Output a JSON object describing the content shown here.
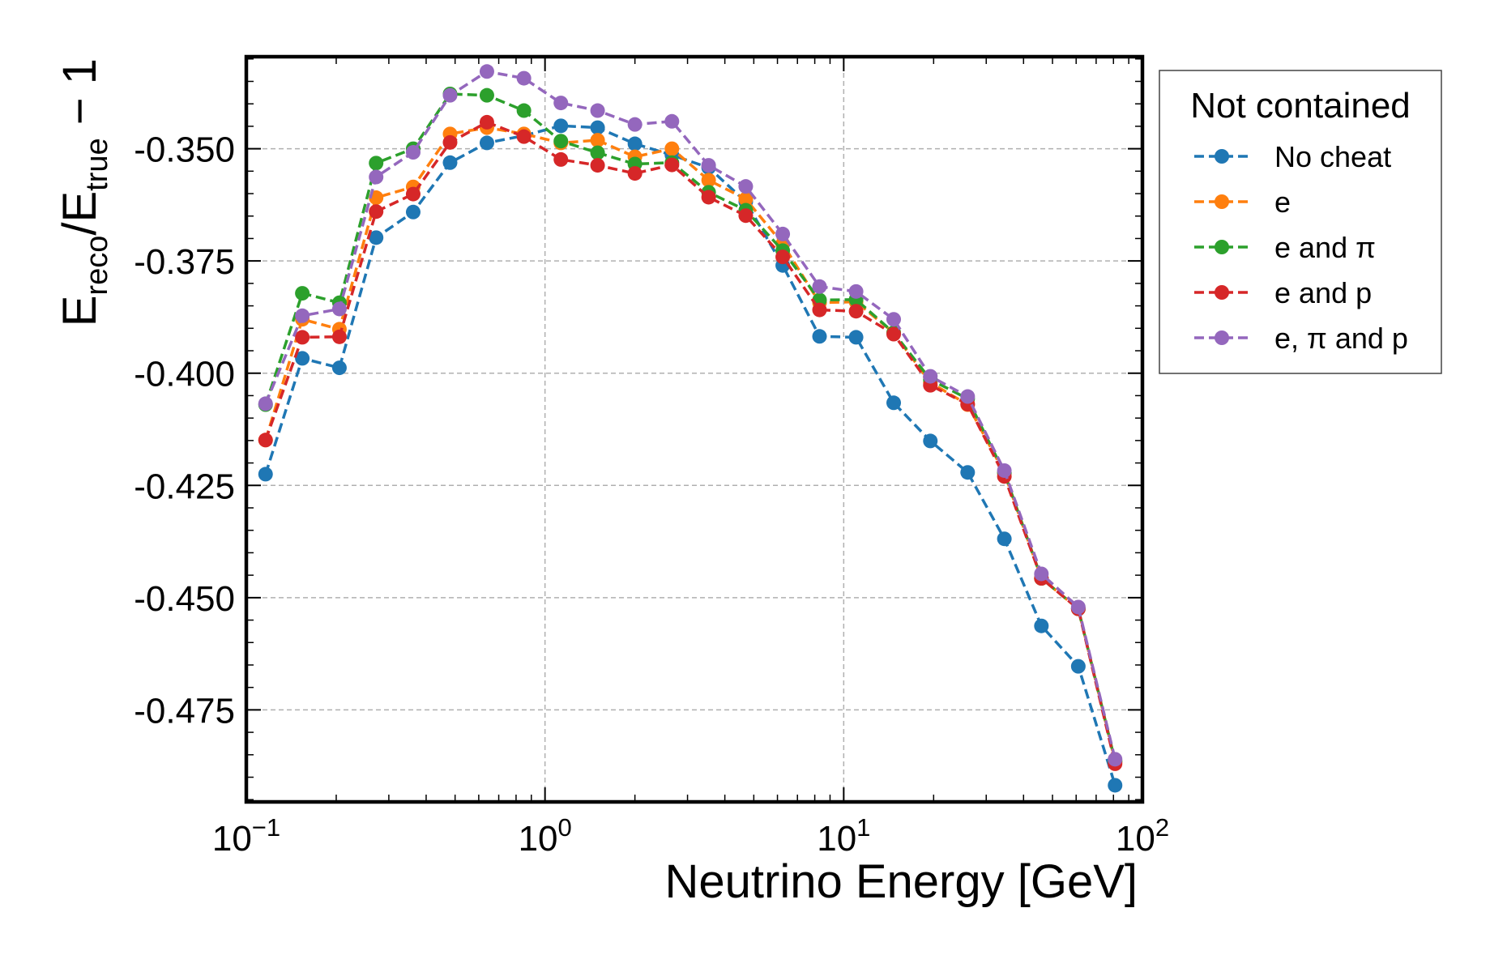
{
  "chart_data": {
    "type": "line",
    "title": "",
    "xlabel": "Neutrino Energy [GeV]",
    "ylabel": {
      "base": "E",
      "sub1": "reco",
      "slash": "/E",
      "sub2": "true",
      "tail": " − 1"
    },
    "xscale": "log",
    "xlim": [
      0.1,
      100
    ],
    "ylim": [
      -0.4955,
      -0.3295
    ],
    "grid": true,
    "x_ticks": [
      {
        "value": 0.1,
        "base": "10",
        "exp": "−1"
      },
      {
        "value": 1,
        "base": "10",
        "exp": "0"
      },
      {
        "value": 10,
        "base": "10",
        "exp": "1"
      },
      {
        "value": 100,
        "base": "10",
        "exp": "2"
      }
    ],
    "y_ticks": [
      {
        "value": -0.35,
        "label": "-0.350"
      },
      {
        "value": -0.375,
        "label": "-0.375"
      },
      {
        "value": -0.4,
        "label": "-0.400"
      },
      {
        "value": -0.425,
        "label": "-0.425"
      },
      {
        "value": -0.45,
        "label": "-0.450"
      },
      {
        "value": -0.475,
        "label": "-0.475"
      }
    ],
    "legend": {
      "title": "Not contained",
      "position": "outside-right-top"
    },
    "x": [
      0.116,
      0.154,
      0.205,
      0.272,
      0.362,
      0.481,
      0.639,
      0.85,
      1.13,
      1.5,
      2.0,
      2.66,
      3.53,
      4.7,
      6.25,
      8.3,
      11.0,
      14.7,
      19.5,
      26.0,
      34.5,
      45.9,
      61.0,
      81.0
    ],
    "series": [
      {
        "name": "No cheat",
        "color": "#1f77b4",
        "values": [
          -0.4225,
          -0.3967,
          -0.3988,
          -0.3698,
          -0.3641,
          -0.3531,
          -0.3487,
          -0.3471,
          -0.3449,
          -0.3453,
          -0.3489,
          -0.3514,
          -0.3542,
          -0.3618,
          -0.376,
          -0.3918,
          -0.392,
          -0.4066,
          -0.4151,
          -0.4221,
          -0.4369,
          -0.4563,
          -0.4653,
          -0.4918
        ]
      },
      {
        "name": "e",
        "color": "#ff7f0e",
        "values": [
          -0.4149,
          -0.388,
          -0.3902,
          -0.3609,
          -0.3585,
          -0.3467,
          -0.3453,
          -0.3467,
          -0.3487,
          -0.3481,
          -0.3518,
          -0.35,
          -0.357,
          -0.3612,
          -0.3712,
          -0.3843,
          -0.3841,
          -0.391,
          -0.4021,
          -0.407,
          -0.4222,
          -0.4457,
          -0.4525,
          -0.4865
        ]
      },
      {
        "name": "e and π",
        "color": "#2ca02c",
        "values": [
          -0.407,
          -0.3822,
          -0.3843,
          -0.3532,
          -0.35,
          -0.3378,
          -0.3381,
          -0.3415,
          -0.3483,
          -0.3509,
          -0.3534,
          -0.3531,
          -0.3597,
          -0.3637,
          -0.3727,
          -0.3837,
          -0.3836,
          -0.391,
          -0.4014,
          -0.4057,
          -0.4222,
          -0.4457,
          -0.4525,
          -0.4865
        ]
      },
      {
        "name": "e and p",
        "color": "#d62728",
        "values": [
          -0.4149,
          -0.392,
          -0.3919,
          -0.364,
          -0.3601,
          -0.3486,
          -0.3441,
          -0.3473,
          -0.3524,
          -0.3537,
          -0.3555,
          -0.3536,
          -0.3608,
          -0.3649,
          -0.3741,
          -0.3859,
          -0.3862,
          -0.3913,
          -0.4027,
          -0.4069,
          -0.423,
          -0.4457,
          -0.4525,
          -0.487
        ]
      },
      {
        "name": "e, π and p",
        "color": "#9467bd",
        "values": [
          -0.4068,
          -0.3872,
          -0.3857,
          -0.3563,
          -0.3508,
          -0.3381,
          -0.3328,
          -0.3343,
          -0.3398,
          -0.3415,
          -0.3446,
          -0.3439,
          -0.3537,
          -0.3584,
          -0.369,
          -0.3807,
          -0.3818,
          -0.388,
          -0.4007,
          -0.4052,
          -0.4217,
          -0.4447,
          -0.4521,
          -0.486
        ]
      }
    ]
  }
}
